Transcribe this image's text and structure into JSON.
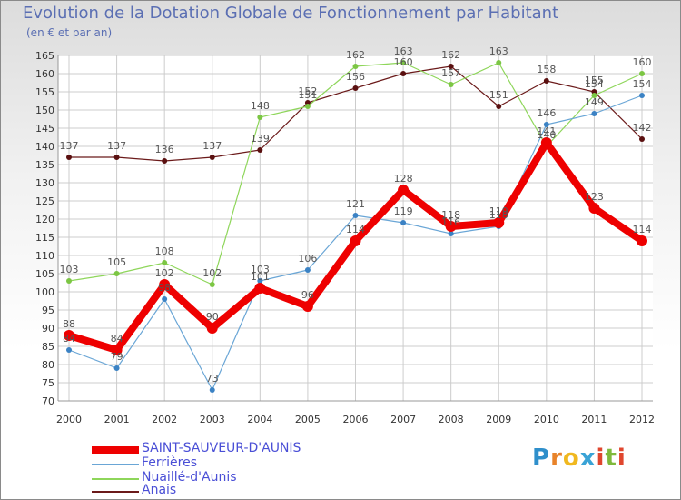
{
  "header": {
    "title": "Evolution de la Dotation Globale de Fonctionnement par Habitant",
    "subtitle": "(en € et par an)"
  },
  "brand": {
    "p": "P",
    "r": "r",
    "o": "o",
    "x": "x",
    "i1": "i",
    "t": "t",
    "i2": "i"
  },
  "colors": {
    "axis_text": "#333333",
    "grid": "#cccccc",
    "label": "#555555",
    "brand_p": "#2f8fcb",
    "brand_r": "#e8832a",
    "brand_o": "#f0b820",
    "brand_x": "#3aa3d6",
    "brand_i": "#e0462e",
    "brand_t": "#7fb93c"
  },
  "chart_data": {
    "type": "line",
    "title": "Evolution de la Dotation Globale de Fonctionnement par Habitant",
    "subtitle": "(en € et par an)",
    "x": [
      "2000",
      "2001",
      "2002",
      "2003",
      "2004",
      "2005",
      "2006",
      "2007",
      "2008",
      "2009",
      "2010",
      "2011",
      "2012"
    ],
    "ylim": [
      70,
      165
    ],
    "yticks": [
      70,
      75,
      80,
      85,
      90,
      95,
      100,
      105,
      110,
      115,
      120,
      125,
      130,
      135,
      140,
      145,
      150,
      155,
      160,
      165
    ],
    "grid": true,
    "legend_position": "bottom-left",
    "series": [
      {
        "name": "Anais",
        "color": "#6b1a1a",
        "dot": "#5a1010",
        "width": 1.2,
        "marker": 3,
        "values": [
          137,
          137,
          136,
          137,
          139,
          152,
          156,
          160,
          162,
          151,
          158,
          155,
          142
        ],
        "labels": [
          "137",
          "137",
          "136",
          "137",
          "139",
          "152",
          "156",
          "160",
          "162",
          "151",
          "158",
          "155",
          "142"
        ]
      },
      {
        "name": "Nuaillé-d'Aunis",
        "color": "#8ed65a",
        "dot": "#7cc644",
        "width": 1.2,
        "marker": 3,
        "values": [
          103,
          105,
          108,
          102,
          148,
          151,
          162,
          163,
          157,
          163,
          140,
          154,
          160
        ],
        "labels": [
          "103",
          "105",
          "108",
          "102",
          "148",
          "151",
          "162",
          "163",
          "157",
          "163",
          "140",
          "154",
          "160"
        ]
      },
      {
        "name": "Ferrières",
        "color": "#6aa6d6",
        "dot": "#3b82c4",
        "width": 1.2,
        "marker": 3,
        "values": [
          84,
          79,
          98,
          73,
          103,
          106,
          121,
          119,
          116,
          118,
          146,
          149,
          154
        ],
        "labels": [
          "84",
          "79",
          "98",
          "73",
          "103",
          "106",
          "121",
          "119",
          "116",
          "118",
          "146",
          "149",
          "154"
        ]
      },
      {
        "name": "SAINT-SAUVEUR-D'AUNIS",
        "color": "#ee0000",
        "dot": "#ee0000",
        "width": 8,
        "marker": 6,
        "values": [
          88,
          84,
          102,
          90,
          101,
          96,
          114,
          128,
          118,
          119,
          141,
          123,
          114
        ],
        "labels": [
          "88",
          "84",
          "102",
          "90",
          "101",
          "96",
          "114",
          "128",
          "118",
          "119",
          "141",
          "123",
          "114"
        ]
      }
    ],
    "legend": [
      {
        "name": "SAINT-SAUVEUR-D'AUNIS",
        "color": "#ee0000",
        "thickness": 8
      },
      {
        "name": "Ferrières",
        "color": "#6aa6d6",
        "thickness": 2
      },
      {
        "name": "Nuaillé-d'Aunis",
        "color": "#8ed65a",
        "thickness": 2
      },
      {
        "name": "Anais",
        "color": "#6b1a1a",
        "thickness": 2
      }
    ]
  }
}
